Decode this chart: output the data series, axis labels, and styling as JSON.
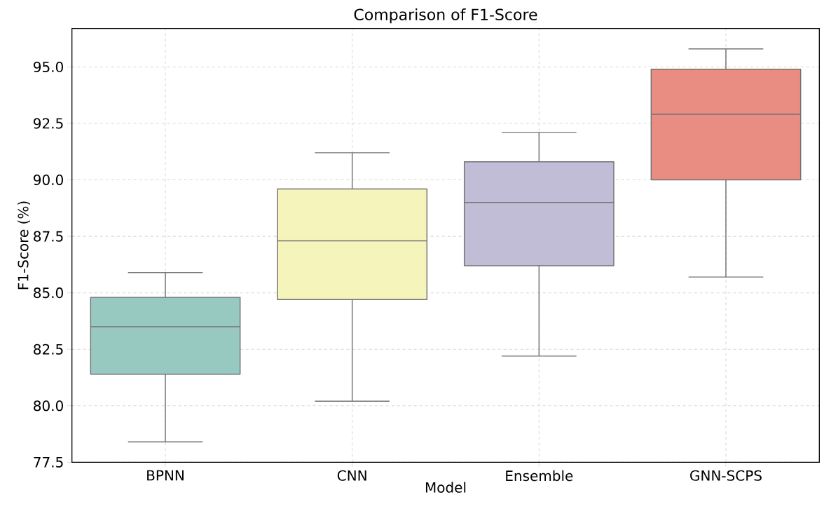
{
  "chart_data": {
    "type": "box",
    "title": "Comparison of F1-Score",
    "xlabel": "Model",
    "ylabel": "F1-Score (%)",
    "categories": [
      "BPNN",
      "CNN",
      "Ensemble",
      "GNN-SCPS"
    ],
    "boxes": [
      {
        "low": 78.4,
        "q1": 81.4,
        "median": 83.5,
        "q3": 84.8,
        "high": 85.9
      },
      {
        "low": 80.2,
        "q1": 84.7,
        "median": 87.3,
        "q3": 89.6,
        "high": 91.2
      },
      {
        "low": 82.2,
        "q1": 86.2,
        "median": 89.0,
        "q3": 90.8,
        "high": 92.1
      },
      {
        "low": 85.7,
        "q1": 90.0,
        "median": 92.9,
        "q3": 94.9,
        "high": 95.8
      }
    ],
    "colors": [
      "#97c9c0",
      "#f5f5bb",
      "#c1bdd6",
      "#e98d82"
    ],
    "ylim": [
      77.5,
      96.7
    ],
    "yticks": [
      {
        "value": 77.5,
        "label": "77.5"
      },
      {
        "value": 80,
        "label": "80.0"
      },
      {
        "value": 82.5,
        "label": "82.5"
      },
      {
        "value": 85,
        "label": "85.0"
      },
      {
        "value": 87.5,
        "label": "87.5"
      },
      {
        "value": 90,
        "label": "90.0"
      },
      {
        "value": 92.5,
        "label": "92.5"
      },
      {
        "value": 95,
        "label": "95.0"
      }
    ],
    "grid": true
  }
}
